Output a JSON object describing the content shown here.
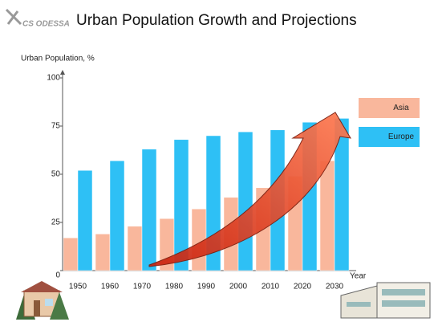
{
  "logo": "CS ODESSA",
  "chart_data": {
    "type": "bar",
    "title": "Urban Population Growth and Projections",
    "y_label": "Urban Population, %",
    "x_label": "Year",
    "categories": [
      "1950",
      "1960",
      "1970",
      "1980",
      "1990",
      "2000",
      "2010",
      "2020",
      "2030"
    ],
    "series": [
      {
        "name": "Asia",
        "color": "#f9b79c",
        "values": [
          17,
          19,
          23,
          27,
          32,
          38,
          43,
          49,
          57
        ]
      },
      {
        "name": "Europe",
        "color": "#2ec0f5",
        "values": [
          52,
          57,
          63,
          68,
          70,
          72,
          73,
          77,
          79
        ]
      }
    ],
    "ylim": [
      0,
      100
    ],
    "yticks": [
      0,
      25,
      50,
      75,
      100
    ],
    "grid": false,
    "legend": "right"
  }
}
